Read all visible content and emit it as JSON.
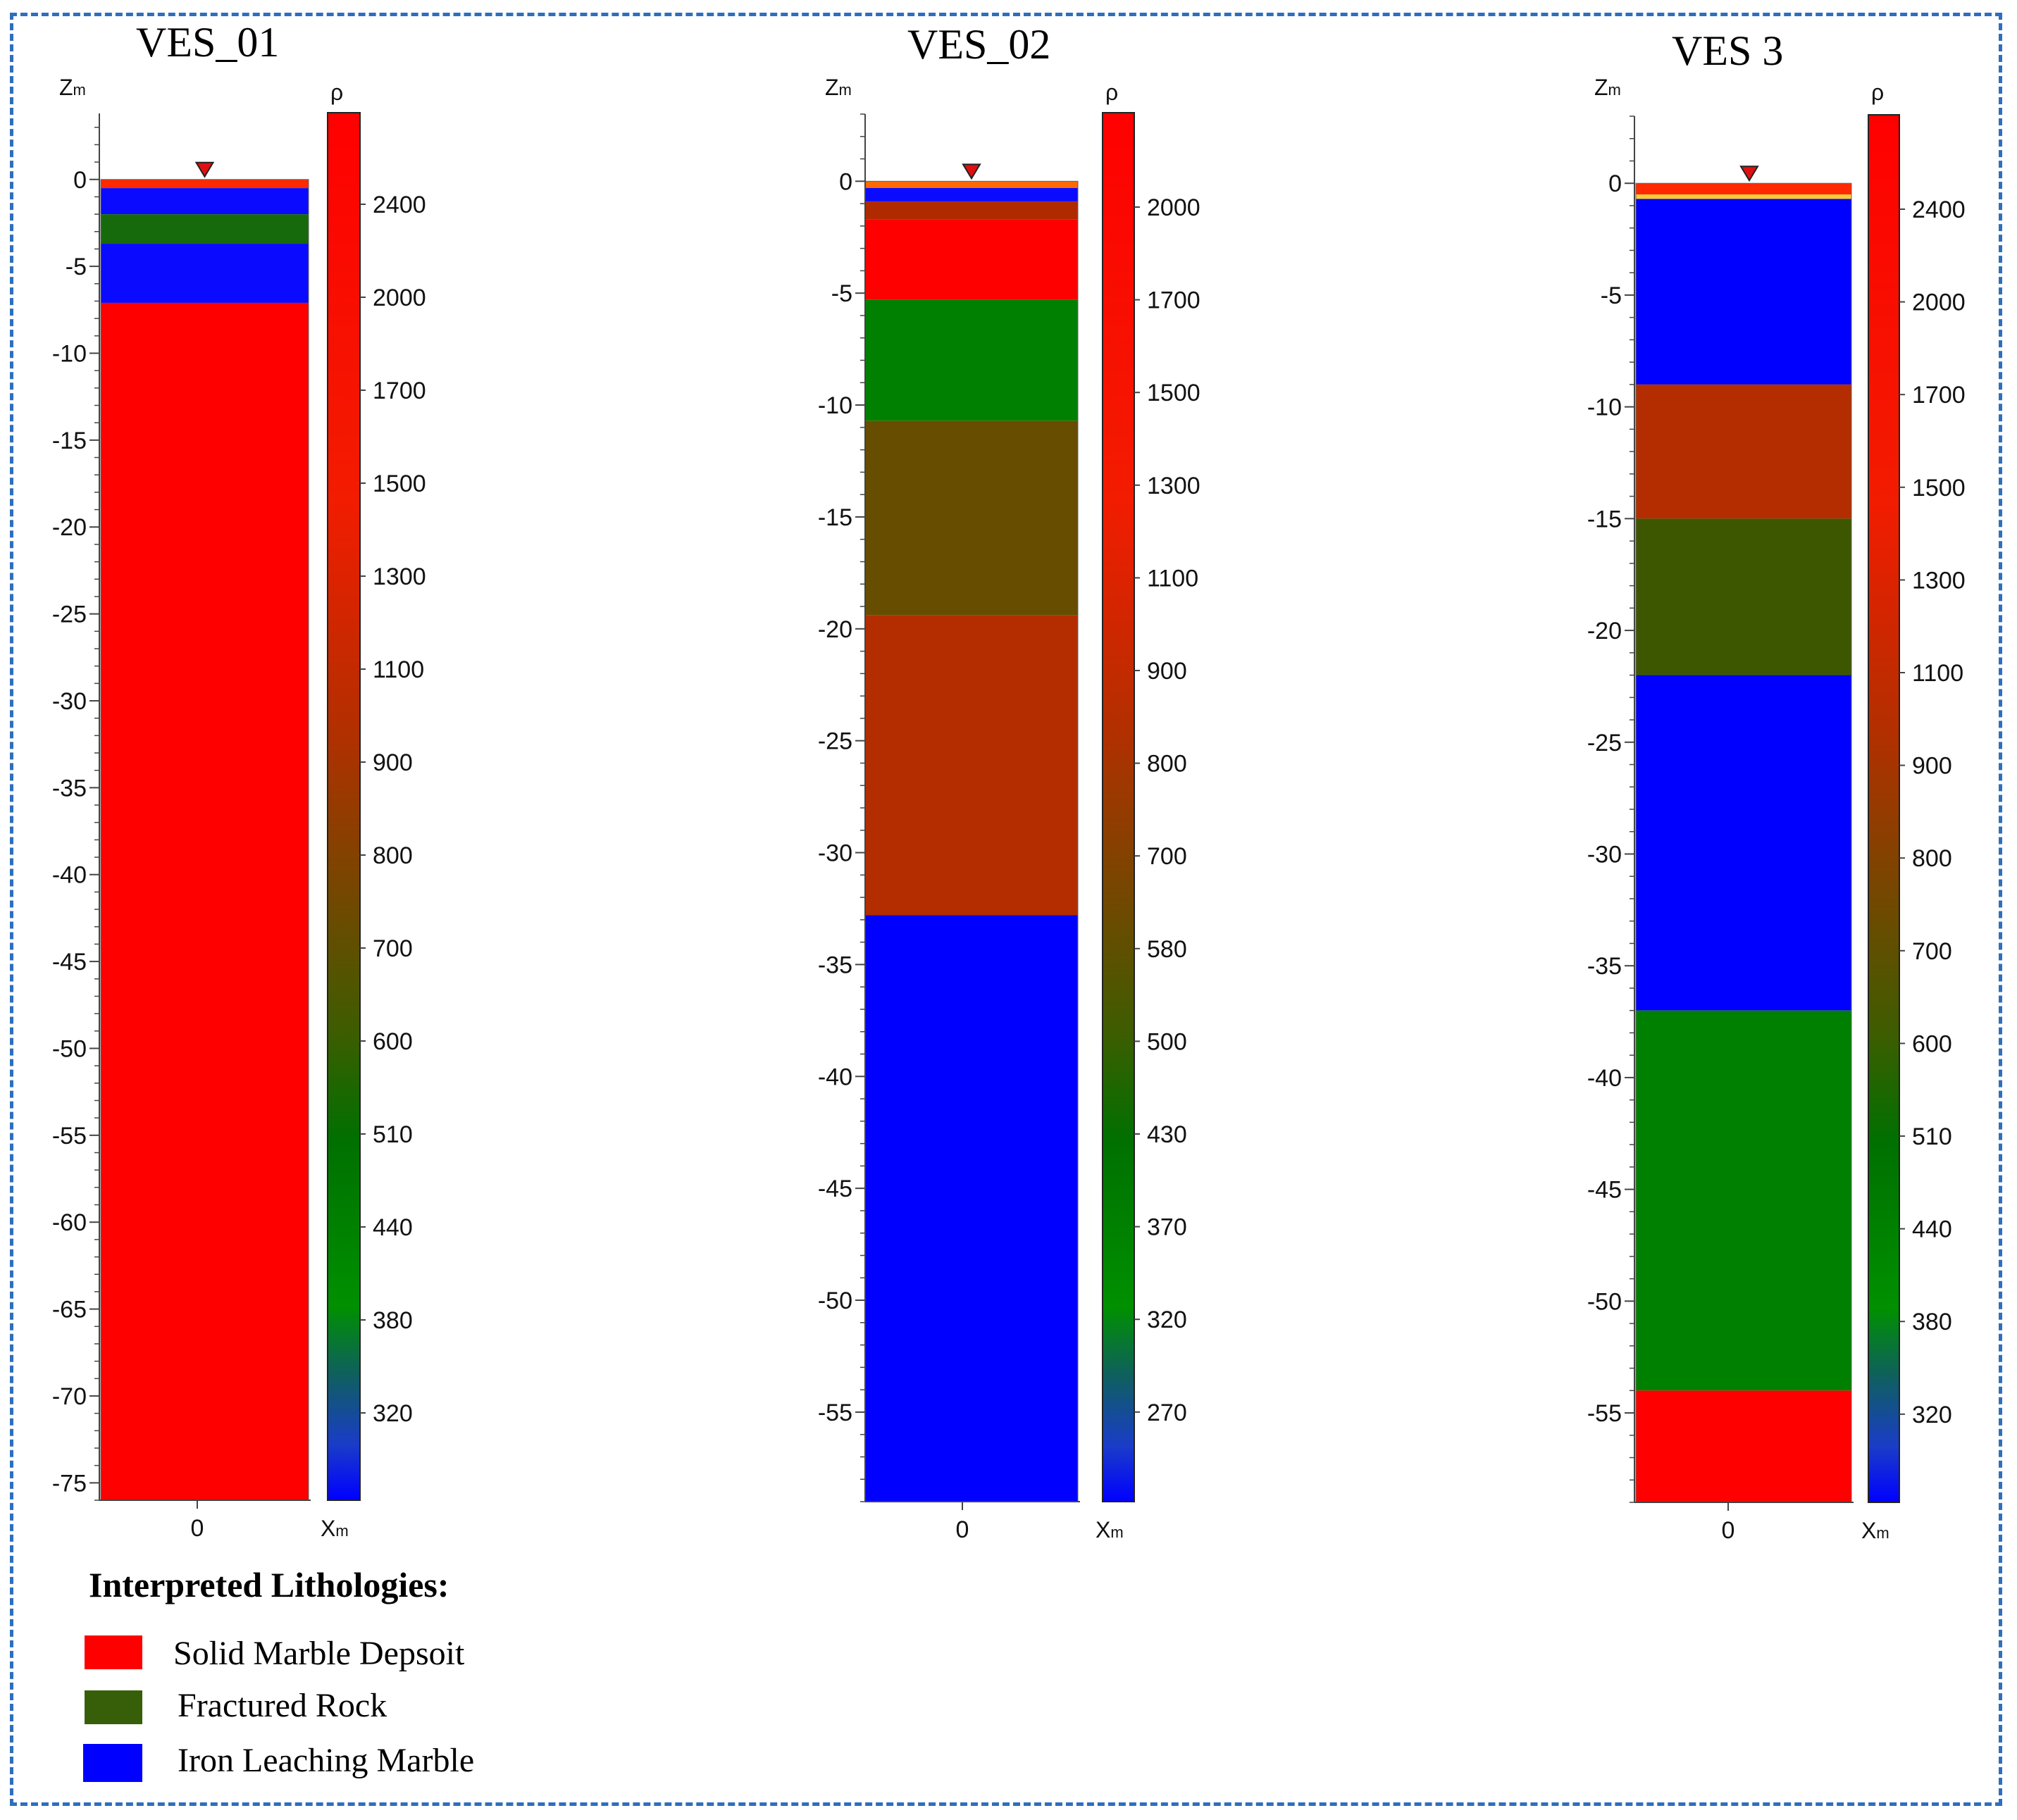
{
  "chart_data": [
    {
      "type": "resistivity-column",
      "title": "VES_01",
      "ylabel": "Zm",
      "xlabel": "Xm",
      "cbar_label": "ρ",
      "x_tick": "0",
      "ylim": [
        -76,
        3.8
      ],
      "y_ticks": [
        0,
        -5,
        -10,
        -15,
        -20,
        -25,
        -30,
        -35,
        -40,
        -45,
        -50,
        -55,
        -60,
        -65,
        -70,
        -75
      ],
      "layers": [
        {
          "top": 0,
          "bottom": -0.5,
          "color": "#ff2a00"
        },
        {
          "top": -0.5,
          "bottom": -2,
          "color": "#0a0aff"
        },
        {
          "top": -2,
          "bottom": -3.7,
          "color": "#176a0c"
        },
        {
          "top": -3.7,
          "bottom": -7.1,
          "color": "#0a0aff"
        },
        {
          "top": -7.1,
          "bottom": -76,
          "color": "#ff0000"
        }
      ],
      "colorbar_ticks": [
        "2400",
        "2000",
        "1700",
        "1500",
        "1300",
        "1100",
        "900",
        "800",
        "700",
        "600",
        "510",
        "440",
        "380",
        "320"
      ]
    },
    {
      "type": "resistivity-column",
      "title": "VES_02",
      "ylabel": "Zm",
      "xlabel": "Xm",
      "cbar_label": "ρ",
      "x_tick": "0",
      "ylim": [
        -59,
        3.0
      ],
      "y_ticks": [
        0,
        -5,
        -10,
        -15,
        -20,
        -25,
        -30,
        -35,
        -40,
        -45,
        -50,
        -55
      ],
      "layers": [
        {
          "top": 0,
          "bottom": -0.3,
          "color": "#ff6a00"
        },
        {
          "top": -0.3,
          "bottom": -0.9,
          "color": "#0a0aff"
        },
        {
          "top": -0.9,
          "bottom": -1.7,
          "color": "#b02a00"
        },
        {
          "top": -1.7,
          "bottom": -5.3,
          "color": "#ff0000"
        },
        {
          "top": -5.3,
          "bottom": -10.7,
          "color": "#008000"
        },
        {
          "top": -10.7,
          "bottom": -19.4,
          "color": "#664d00"
        },
        {
          "top": -19.4,
          "bottom": -32.8,
          "color": "#b32d00"
        },
        {
          "top": -32.8,
          "bottom": -59,
          "color": "#0000ff"
        }
      ],
      "colorbar_ticks": [
        "2000",
        "1700",
        "1500",
        "1300",
        "1100",
        "900",
        "800",
        "700",
        "580",
        "500",
        "430",
        "370",
        "320",
        "270"
      ]
    },
    {
      "type": "resistivity-column",
      "title": "VES 3",
      "ylabel": "Zm",
      "xlabel": "Xm",
      "cbar_label": "ρ",
      "x_tick": "0",
      "ylim": [
        -59,
        3.0
      ],
      "y_ticks": [
        0,
        -5,
        -10,
        -15,
        -20,
        -25,
        -30,
        -35,
        -40,
        -45,
        -50,
        -55
      ],
      "layers": [
        {
          "top": 0,
          "bottom": -0.5,
          "color": "#ff2a00"
        },
        {
          "top": -0.5,
          "bottom": -0.7,
          "color": "#ffcc33"
        },
        {
          "top": -0.7,
          "bottom": -9.0,
          "color": "#0000ff"
        },
        {
          "top": -9.0,
          "bottom": -15.0,
          "color": "#b32d00"
        },
        {
          "top": -15.0,
          "bottom": -22.0,
          "color": "#3d5700"
        },
        {
          "top": -22.0,
          "bottom": -37.0,
          "color": "#0000ff"
        },
        {
          "top": -37.0,
          "bottom": -54.0,
          "color": "#008000"
        },
        {
          "top": -54.0,
          "bottom": -59,
          "color": "#ff0000"
        }
      ],
      "colorbar_ticks": [
        "2400",
        "2000",
        "1700",
        "1500",
        "1300",
        "1100",
        "900",
        "800",
        "700",
        "600",
        "510",
        "440",
        "380",
        "320"
      ]
    }
  ],
  "legend": {
    "title": "Interpreted Lithologies:",
    "items": [
      {
        "label": "Solid Marble Depsoit",
        "color": "#ff0000"
      },
      {
        "label": "Fractured Rock",
        "color": "#375f0a"
      },
      {
        "label": "Iron Leaching Marble",
        "color": "#0000ff"
      }
    ]
  },
  "colorbar_gradient": [
    {
      "offset": 0,
      "color": "#ff0000"
    },
    {
      "offset": 0.28,
      "color": "#f21c00"
    },
    {
      "offset": 0.45,
      "color": "#b03000"
    },
    {
      "offset": 0.58,
      "color": "#6b4b00"
    },
    {
      "offset": 0.66,
      "color": "#3f5c00"
    },
    {
      "offset": 0.74,
      "color": "#007000"
    },
    {
      "offset": 0.86,
      "color": "#009000"
    },
    {
      "offset": 0.91,
      "color": "#0f5f5f"
    },
    {
      "offset": 0.96,
      "color": "#1a3cc8"
    },
    {
      "offset": 1,
      "color": "#0000ff"
    }
  ]
}
